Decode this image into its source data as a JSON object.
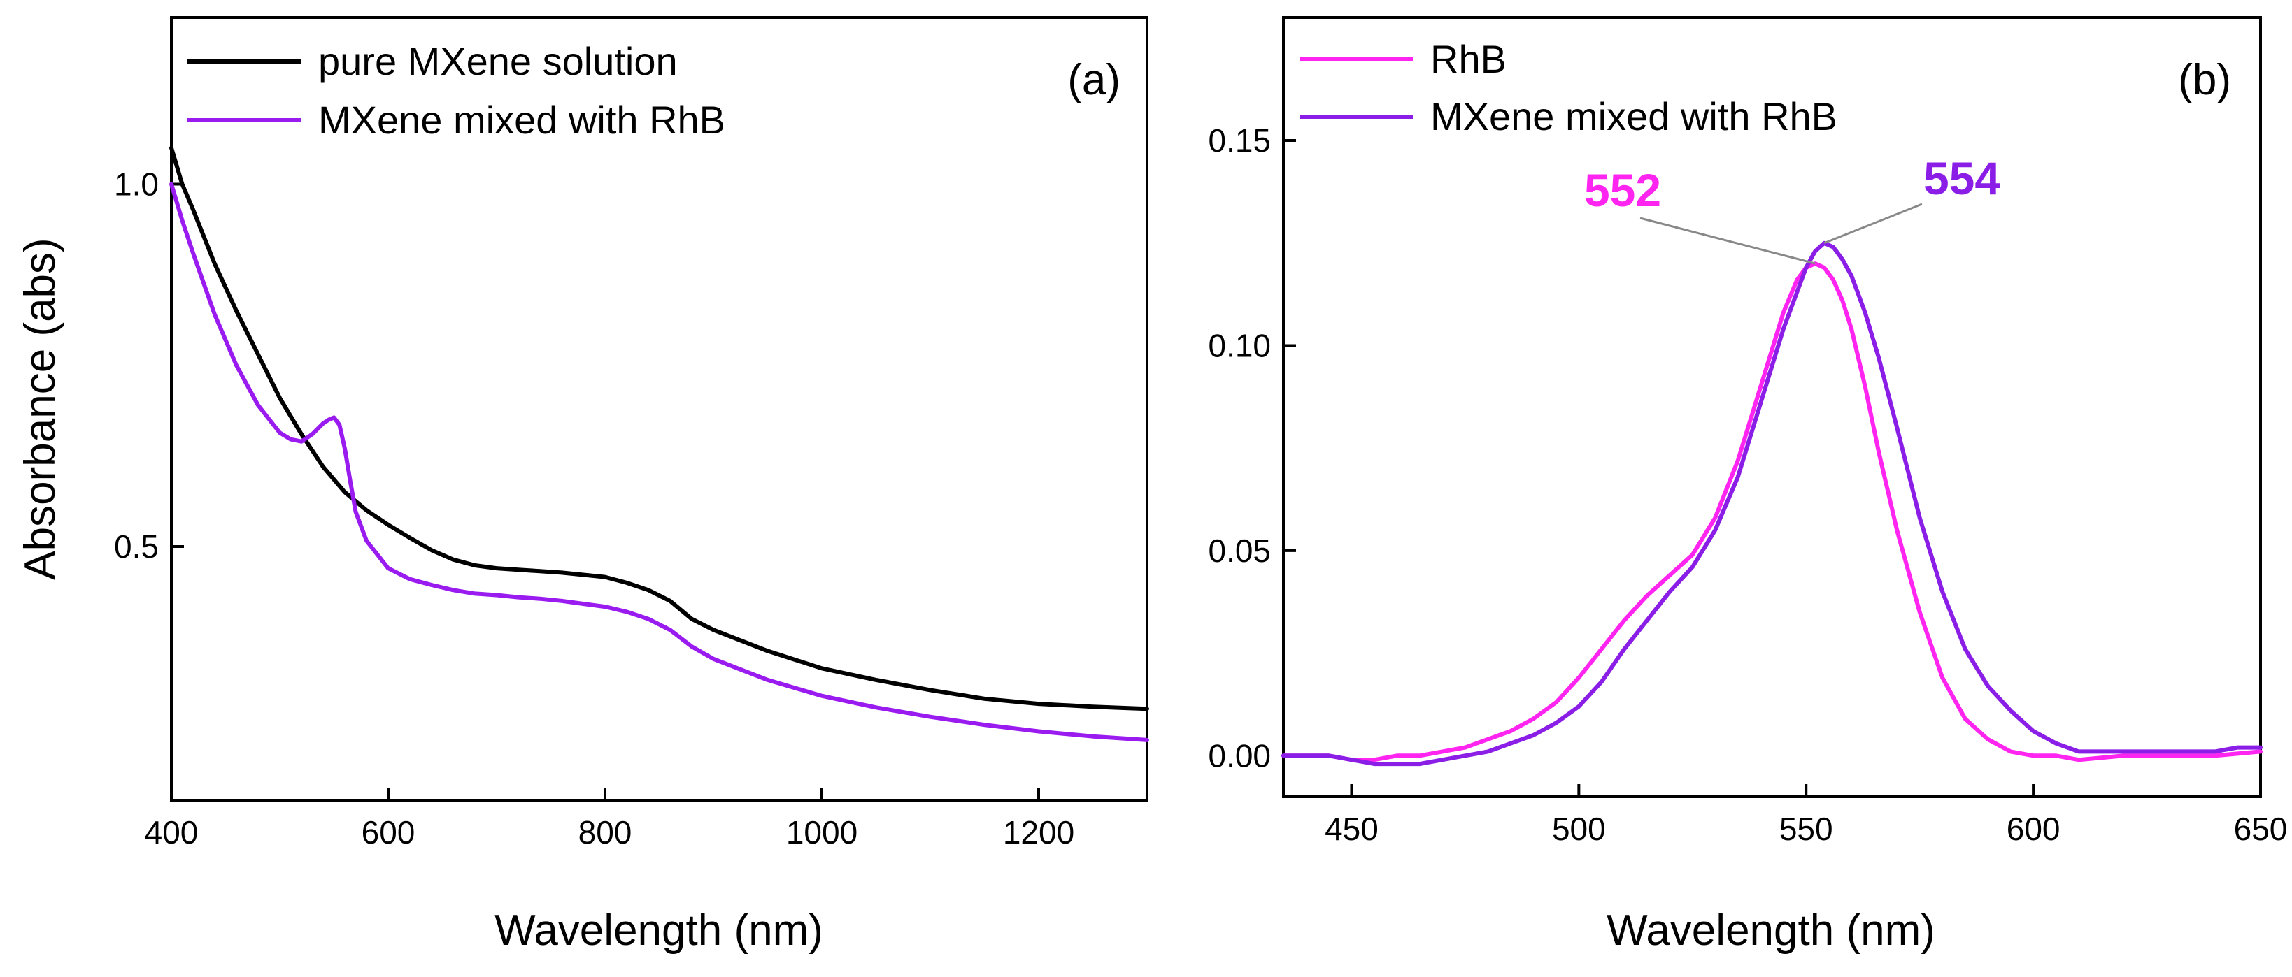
{
  "colors": {
    "black": "#000000",
    "purple": "#9a1bf0",
    "magenta": "#ff24f0",
    "violet": "#8a1ee6",
    "leader": "#888888"
  },
  "chart_data": [
    {
      "type": "line",
      "panel_label": "(a)",
      "xlabel": "Wavelength (nm)",
      "ylabel": "Absorbance (abs)",
      "xlim": [
        400,
        1300
      ],
      "ylim": [
        0.15,
        1.23
      ],
      "xticks": [
        400,
        600,
        800,
        1000,
        1200
      ],
      "xtick_labels": [
        "400",
        "600",
        "800",
        "1000",
        "1200"
      ],
      "yticks": [
        0.5,
        1.0
      ],
      "ytick_labels": [
        "0.5",
        "1.0"
      ],
      "legend_position": "top-left",
      "series": [
        {
          "name": "pure MXene solution",
          "color": "#000000",
          "x": [
            400,
            410,
            420,
            440,
            460,
            480,
            500,
            520,
            540,
            560,
            580,
            600,
            620,
            640,
            660,
            680,
            700,
            720,
            740,
            760,
            780,
            800,
            820,
            840,
            860,
            880,
            900,
            950,
            1000,
            1050,
            1100,
            1150,
            1200,
            1250,
            1300
          ],
          "y": [
            1.05,
            1.0,
            0.965,
            0.89,
            0.825,
            0.765,
            0.705,
            0.655,
            0.61,
            0.575,
            0.55,
            0.53,
            0.512,
            0.495,
            0.482,
            0.474,
            0.47,
            0.468,
            0.466,
            0.464,
            0.461,
            0.458,
            0.45,
            0.44,
            0.425,
            0.4,
            0.385,
            0.356,
            0.332,
            0.316,
            0.302,
            0.29,
            0.283,
            0.279,
            0.276
          ]
        },
        {
          "name": "MXene mixed with RhB",
          "color": "#9a1bf0",
          "x": [
            400,
            410,
            420,
            440,
            460,
            480,
            500,
            510,
            520,
            530,
            540,
            545,
            550,
            555,
            560,
            565,
            570,
            580,
            600,
            620,
            640,
            660,
            680,
            700,
            720,
            740,
            760,
            780,
            800,
            820,
            840,
            860,
            880,
            900,
            950,
            1000,
            1050,
            1100,
            1150,
            1200,
            1250,
            1300
          ],
          "y": [
            1.0,
            0.95,
            0.905,
            0.82,
            0.75,
            0.695,
            0.657,
            0.648,
            0.645,
            0.655,
            0.67,
            0.675,
            0.678,
            0.668,
            0.635,
            0.59,
            0.548,
            0.508,
            0.47,
            0.455,
            0.447,
            0.44,
            0.435,
            0.433,
            0.43,
            0.428,
            0.425,
            0.421,
            0.417,
            0.41,
            0.4,
            0.385,
            0.362,
            0.345,
            0.316,
            0.294,
            0.278,
            0.265,
            0.254,
            0.245,
            0.238,
            0.233
          ]
        }
      ]
    },
    {
      "type": "line",
      "panel_label": "(b)",
      "xlabel": "Wavelength (nm)",
      "ylabel": "",
      "xlim": [
        435,
        650
      ],
      "ylim": [
        -0.01,
        0.18
      ],
      "xticks": [
        450,
        500,
        550,
        600,
        650
      ],
      "xtick_labels": [
        "450",
        "500",
        "550",
        "600",
        "650"
      ],
      "yticks": [
        0.0,
        0.05,
        0.1,
        0.15
      ],
      "ytick_labels": [
        "0.00",
        "0.05",
        "0.10",
        "0.15"
      ],
      "legend_position": "top-left",
      "series": [
        {
          "name": "RhB",
          "color": "#ff24f0",
          "x": [
            435,
            440,
            445,
            450,
            455,
            460,
            465,
            470,
            475,
            480,
            485,
            490,
            495,
            500,
            505,
            510,
            515,
            520,
            525,
            530,
            535,
            540,
            545,
            548,
            550,
            552,
            554,
            556,
            558,
            560,
            563,
            566,
            570,
            575,
            580,
            585,
            590,
            595,
            600,
            605,
            610,
            620,
            630,
            640,
            650
          ],
          "y": [
            0.0,
            0.0,
            0.0,
            -0.001,
            -0.001,
            0.0,
            0.0,
            0.001,
            0.002,
            0.004,
            0.006,
            0.009,
            0.013,
            0.019,
            0.026,
            0.033,
            0.039,
            0.044,
            0.049,
            0.058,
            0.072,
            0.09,
            0.108,
            0.116,
            0.119,
            0.12,
            0.119,
            0.116,
            0.111,
            0.104,
            0.09,
            0.074,
            0.055,
            0.035,
            0.019,
            0.009,
            0.004,
            0.001,
            0.0,
            0.0,
            -0.001,
            0.0,
            0.0,
            0.0,
            0.001
          ]
        },
        {
          "name": "MXene mixed with RhB",
          "color": "#8a1ee6",
          "x": [
            435,
            440,
            445,
            450,
            455,
            460,
            465,
            470,
            475,
            480,
            485,
            490,
            495,
            500,
            505,
            510,
            515,
            520,
            525,
            530,
            535,
            540,
            545,
            550,
            552,
            554,
            556,
            558,
            560,
            563,
            566,
            570,
            575,
            580,
            585,
            590,
            595,
            600,
            605,
            610,
            615,
            620,
            630,
            640,
            645,
            650
          ],
          "y": [
            0.0,
            0.0,
            0.0,
            -0.001,
            -0.002,
            -0.002,
            -0.002,
            -0.001,
            0.0,
            0.001,
            0.003,
            0.005,
            0.008,
            0.012,
            0.018,
            0.026,
            0.033,
            0.04,
            0.046,
            0.055,
            0.068,
            0.086,
            0.104,
            0.119,
            0.123,
            0.125,
            0.124,
            0.121,
            0.117,
            0.108,
            0.097,
            0.08,
            0.058,
            0.04,
            0.026,
            0.017,
            0.011,
            0.006,
            0.003,
            0.001,
            0.001,
            0.001,
            0.001,
            0.001,
            0.002,
            0.002
          ]
        }
      ],
      "annotations": [
        {
          "text": "552",
          "color": "#ff24f0",
          "points_to": [
            552,
            0.12
          ]
        },
        {
          "text": "554",
          "color": "#8a1ee6",
          "points_to": [
            554,
            0.125
          ]
        }
      ]
    }
  ]
}
